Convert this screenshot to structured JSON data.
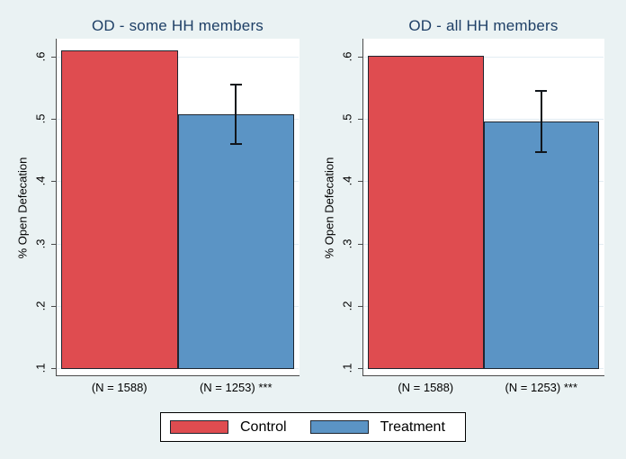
{
  "colors": {
    "background": "#eaf2f3",
    "plot_background": "#ffffff",
    "control": "#df4c50",
    "treatment": "#5b94c5",
    "bar_border": "#1f2630",
    "grid": "#e3edf3",
    "axis": "#4a4a4a",
    "title": "#1e3f66",
    "error_bar": "#11161c"
  },
  "chart_data": [
    {
      "type": "bar",
      "title": "OD - some HH members",
      "ylabel": "% Open Defecation",
      "ylim": [
        0.1,
        0.6
      ],
      "yticks": [
        0.1,
        0.2,
        0.3,
        0.4,
        0.5,
        0.6
      ],
      "ytick_labels": [
        ".1",
        ".2",
        ".3",
        ".4",
        ".5",
        ".6"
      ],
      "grid": true,
      "categories": [
        "(N = 1588)",
        "(N = 1253) ***"
      ],
      "series": [
        {
          "name": "Control",
          "value": 0.61
        },
        {
          "name": "Treatment",
          "value": 0.507,
          "ci_low": 0.46,
          "ci_high": 0.555
        }
      ]
    },
    {
      "type": "bar",
      "title": "OD - all HH members",
      "ylabel": "% Open Defecation",
      "ylim": [
        0.1,
        0.6
      ],
      "yticks": [
        0.1,
        0.2,
        0.3,
        0.4,
        0.5,
        0.6
      ],
      "ytick_labels": [
        ".1",
        ".2",
        ".3",
        ".4",
        ".5",
        ".6"
      ],
      "grid": true,
      "categories": [
        "(N = 1588)",
        "(N = 1253) ***"
      ],
      "series": [
        {
          "name": "Control",
          "value": 0.601
        },
        {
          "name": "Treatment",
          "value": 0.496,
          "ci_low": 0.447,
          "ci_high": 0.545
        }
      ]
    }
  ],
  "legend": {
    "position": "bottom-center",
    "items": [
      {
        "label": "Control",
        "color_key": "control"
      },
      {
        "label": "Treatment",
        "color_key": "treatment"
      }
    ]
  }
}
